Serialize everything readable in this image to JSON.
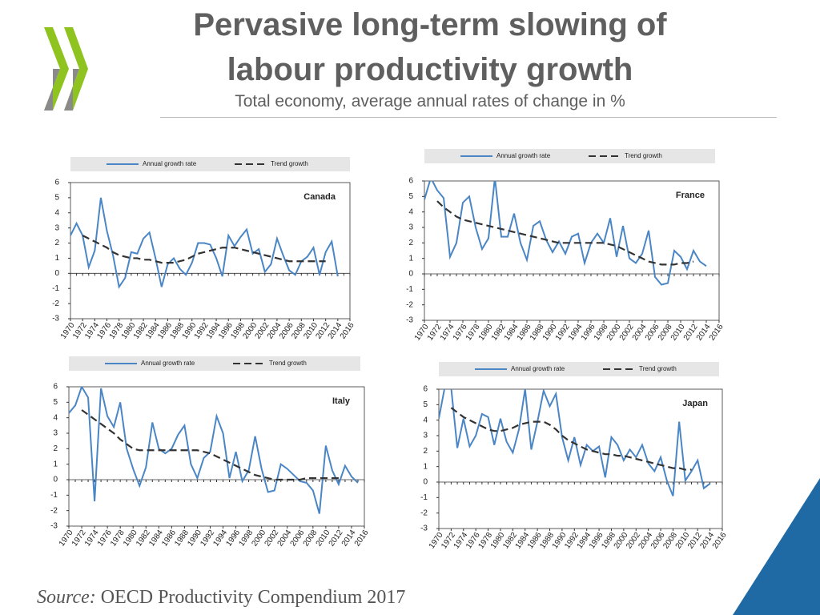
{
  "title": [
    "Pervasive long-term slowing of",
    "labour productivity growth"
  ],
  "subtitle": "Total economy, average annual rates of change in %",
  "source_label": "Source:",
  "source_text": "OECD Productivity Compendium 2017",
  "chart_data": [
    {
      "type": "line",
      "title": "Canada",
      "x": [
        1970,
        1971,
        1972,
        1973,
        1974,
        1975,
        1976,
        1977,
        1978,
        1979,
        1980,
        1981,
        1982,
        1983,
        1984,
        1985,
        1986,
        1987,
        1988,
        1989,
        1990,
        1991,
        1992,
        1993,
        1994,
        1995,
        1996,
        1997,
        1998,
        1999,
        2000,
        2001,
        2002,
        2003,
        2004,
        2005,
        2006,
        2007,
        2008,
        2009,
        2010,
        2011,
        2012,
        2013,
        2014,
        2015,
        2016
      ],
      "series": [
        {
          "name": "Annual growth rate",
          "color": "#4a86c5",
          "values": [
            2.5,
            3.3,
            2.5,
            0.4,
            1.5,
            5.0,
            2.8,
            1.2,
            -0.9,
            -0.3,
            1.4,
            1.3,
            2.3,
            2.7,
            1.0,
            -0.9,
            0.6,
            1.0,
            0.3,
            -0.1,
            0.7,
            2.0,
            2.0,
            1.9,
            1.0,
            -0.2,
            2.5,
            1.8,
            2.4,
            2.9,
            1.3,
            1.6,
            0.1,
            0.6,
            2.3,
            1.2,
            0.2,
            -0.1,
            0.8,
            1.1,
            1.7,
            -0.1,
            1.4,
            2.1,
            -0.2,
            null,
            null
          ]
        },
        {
          "name": "Trend growth",
          "color": "#333333",
          "dashed": true,
          "values": [
            null,
            null,
            2.5,
            2.3,
            2.1,
            1.9,
            1.7,
            1.4,
            1.2,
            1.1,
            1.0,
            1.0,
            0.9,
            0.9,
            0.8,
            0.7,
            0.7,
            0.7,
            0.8,
            0.9,
            1.1,
            1.3,
            1.4,
            1.5,
            1.6,
            1.7,
            1.7,
            1.7,
            1.6,
            1.5,
            1.4,
            1.3,
            1.2,
            1.1,
            1.0,
            0.9,
            0.8,
            0.8,
            0.8,
            0.8,
            0.8,
            0.8,
            0.8,
            null,
            null,
            null,
            null
          ]
        }
      ],
      "xlim": [
        1970,
        2016
      ],
      "xticks": [
        1970,
        1972,
        1974,
        1976,
        1978,
        1980,
        1982,
        1984,
        1986,
        1988,
        1990,
        1992,
        1994,
        1996,
        1998,
        2000,
        2002,
        2004,
        2006,
        2008,
        2010,
        2012,
        2014,
        2016
      ],
      "ylim": [
        -3,
        6
      ],
      "yticks": [
        -3,
        -2,
        -1,
        0,
        1,
        2,
        3,
        4,
        5,
        6
      ]
    },
    {
      "type": "line",
      "title": "France",
      "x": [
        1970,
        1971,
        1972,
        1973,
        1974,
        1975,
        1976,
        1977,
        1978,
        1979,
        1980,
        1981,
        1982,
        1983,
        1984,
        1985,
        1986,
        1987,
        1988,
        1989,
        1990,
        1991,
        1992,
        1993,
        1994,
        1995,
        1996,
        1997,
        1998,
        1999,
        2000,
        2001,
        2002,
        2003,
        2004,
        2005,
        2006,
        2007,
        2008,
        2009,
        2010,
        2011,
        2012,
        2013,
        2014,
        2015,
        2016
      ],
      "series": [
        {
          "name": "Annual growth rate",
          "color": "#4a86c5",
          "values": [
            4.8,
            6.2,
            5.4,
            4.9,
            1.1,
            2.0,
            4.6,
            5.0,
            3.0,
            1.6,
            2.3,
            6.2,
            2.4,
            2.4,
            3.9,
            2.0,
            0.9,
            3.1,
            3.4,
            2.2,
            1.4,
            2.1,
            1.3,
            2.4,
            2.6,
            0.7,
            2.0,
            2.6,
            2.0,
            3.6,
            1.1,
            3.1,
            1.0,
            0.7,
            1.3,
            2.8,
            -0.2,
            -0.7,
            -0.6,
            1.5,
            1.1,
            0.3,
            1.5,
            0.8,
            0.5,
            null,
            null
          ]
        },
        {
          "name": "Trend growth",
          "color": "#333333",
          "dashed": true,
          "values": [
            null,
            null,
            4.7,
            4.3,
            4.0,
            3.7,
            3.5,
            3.4,
            3.3,
            3.2,
            3.1,
            3.0,
            2.9,
            2.8,
            2.7,
            2.6,
            2.5,
            2.4,
            2.3,
            2.2,
            2.1,
            2.0,
            2.0,
            2.0,
            2.0,
            2.0,
            2.0,
            2.0,
            2.0,
            1.9,
            1.8,
            1.6,
            1.4,
            1.2,
            1.0,
            0.8,
            0.7,
            0.6,
            0.6,
            0.6,
            0.7,
            0.7,
            0.8,
            null,
            null,
            null,
            null
          ]
        }
      ],
      "xlim": [
        1970,
        2016
      ],
      "xticks": [
        1970,
        1972,
        1974,
        1976,
        1978,
        1980,
        1982,
        1984,
        1986,
        1988,
        1990,
        1992,
        1994,
        1996,
        1998,
        2000,
        2002,
        2004,
        2006,
        2008,
        2010,
        2012,
        2014,
        2016
      ],
      "ylim": [
        -3,
        6
      ],
      "yticks": [
        -3,
        -2,
        -1,
        0,
        1,
        2,
        3,
        4,
        5,
        6
      ]
    },
    {
      "type": "line",
      "title": "Italy",
      "x": [
        1970,
        1971,
        1972,
        1973,
        1974,
        1975,
        1976,
        1977,
        1978,
        1979,
        1980,
        1981,
        1982,
        1983,
        1984,
        1985,
        1986,
        1987,
        1988,
        1989,
        1990,
        1991,
        1992,
        1993,
        1994,
        1995,
        1996,
        1997,
        1998,
        1999,
        2000,
        2001,
        2002,
        2003,
        2004,
        2005,
        2006,
        2007,
        2008,
        2009,
        2010,
        2011,
        2012,
        2013,
        2014,
        2015,
        2016
      ],
      "series": [
        {
          "name": "Annual growth rate",
          "color": "#4a86c5",
          "values": [
            4.3,
            4.8,
            6.0,
            5.3,
            -1.4,
            5.9,
            4.1,
            3.4,
            5.0,
            2.0,
            0.7,
            -0.4,
            0.8,
            3.7,
            2.0,
            1.7,
            2.0,
            2.9,
            3.5,
            1.0,
            0.1,
            1.4,
            1.8,
            4.1,
            3.0,
            0.1,
            1.8,
            -0.1,
            0.6,
            2.8,
            0.7,
            -0.8,
            -0.7,
            1.0,
            0.7,
            0.3,
            -0.1,
            -0.2,
            -0.7,
            -2.2,
            2.2,
            0.6,
            -0.3,
            0.9,
            0.2,
            -0.2,
            null
          ]
        },
        {
          "name": "Trend growth",
          "color": "#333333",
          "dashed": true,
          "values": [
            null,
            null,
            4.5,
            4.2,
            3.9,
            3.6,
            3.3,
            3.0,
            2.6,
            2.3,
            2.0,
            1.9,
            1.9,
            1.9,
            1.9,
            1.9,
            1.9,
            1.9,
            1.9,
            1.9,
            1.9,
            1.8,
            1.7,
            1.5,
            1.3,
            1.1,
            0.9,
            0.7,
            0.5,
            0.3,
            0.2,
            0.1,
            0.0,
            0.0,
            0.0,
            0.0,
            0.0,
            0.1,
            0.1,
            0.1,
            0.1,
            0.1,
            0.1,
            null,
            null,
            null,
            null
          ]
        }
      ],
      "xlim": [
        1970,
        2016
      ],
      "xticks": [
        1970,
        1972,
        1974,
        1976,
        1978,
        1980,
        1982,
        1984,
        1986,
        1988,
        1990,
        1992,
        1994,
        1996,
        1998,
        2000,
        2002,
        2004,
        2006,
        2008,
        2010,
        2012,
        2014,
        2016
      ],
      "ylim": [
        -3,
        6
      ],
      "yticks": [
        -3,
        -2,
        -1,
        0,
        1,
        2,
        3,
        4,
        5,
        6
      ]
    },
    {
      "type": "line",
      "title": "Japan",
      "x": [
        1970,
        1971,
        1972,
        1973,
        1974,
        1975,
        1976,
        1977,
        1978,
        1979,
        1980,
        1981,
        1982,
        1983,
        1984,
        1985,
        1986,
        1987,
        1988,
        1989,
        1990,
        1991,
        1992,
        1993,
        1994,
        1995,
        1996,
        1997,
        1998,
        1999,
        2000,
        2001,
        2002,
        2003,
        2004,
        2005,
        2006,
        2007,
        2008,
        2009,
        2010,
        2011,
        2012,
        2013,
        2014,
        2015,
        2016
      ],
      "series": [
        {
          "name": "Annual growth rate",
          "color": "#4a86c5",
          "values": [
            4.1,
            6.2,
            6.1,
            2.2,
            4.1,
            2.3,
            3.0,
            4.4,
            4.2,
            2.4,
            4.1,
            2.6,
            1.9,
            3.4,
            6.0,
            2.1,
            3.9,
            5.9,
            4.9,
            5.7,
            2.9,
            1.4,
            2.9,
            1.1,
            2.4,
            2.0,
            2.3,
            0.3,
            2.9,
            2.4,
            1.4,
            2.1,
            1.6,
            2.4,
            1.2,
            0.7,
            1.6,
            0.1,
            -0.9,
            3.9,
            0.1,
            0.7,
            1.4,
            -0.4,
            -0.1,
            null,
            null
          ]
        },
        {
          "name": "Trend growth",
          "color": "#333333",
          "dashed": true,
          "values": [
            null,
            null,
            4.8,
            4.5,
            4.2,
            4.0,
            3.8,
            3.6,
            3.4,
            3.3,
            3.3,
            3.4,
            3.5,
            3.7,
            3.8,
            3.9,
            3.9,
            3.9,
            3.7,
            3.4,
            3.0,
            2.7,
            2.5,
            2.3,
            2.1,
            2.0,
            1.9,
            1.8,
            1.8,
            1.7,
            1.7,
            1.6,
            1.5,
            1.4,
            1.3,
            1.2,
            1.1,
            1.0,
            0.9,
            0.9,
            0.8,
            0.8,
            null,
            null,
            null,
            null,
            null
          ]
        }
      ],
      "xlim": [
        1970,
        2016
      ],
      "xticks": [
        1970,
        1972,
        1974,
        1976,
        1978,
        1980,
        1982,
        1984,
        1986,
        1988,
        1990,
        1992,
        1994,
        1996,
        1998,
        2000,
        2002,
        2004,
        2006,
        2008,
        2010,
        2012,
        2014,
        2016
      ],
      "ylim": [
        -3,
        6
      ],
      "yticks": [
        -3,
        -2,
        -1,
        0,
        1,
        2,
        3,
        4,
        5,
        6
      ]
    }
  ]
}
